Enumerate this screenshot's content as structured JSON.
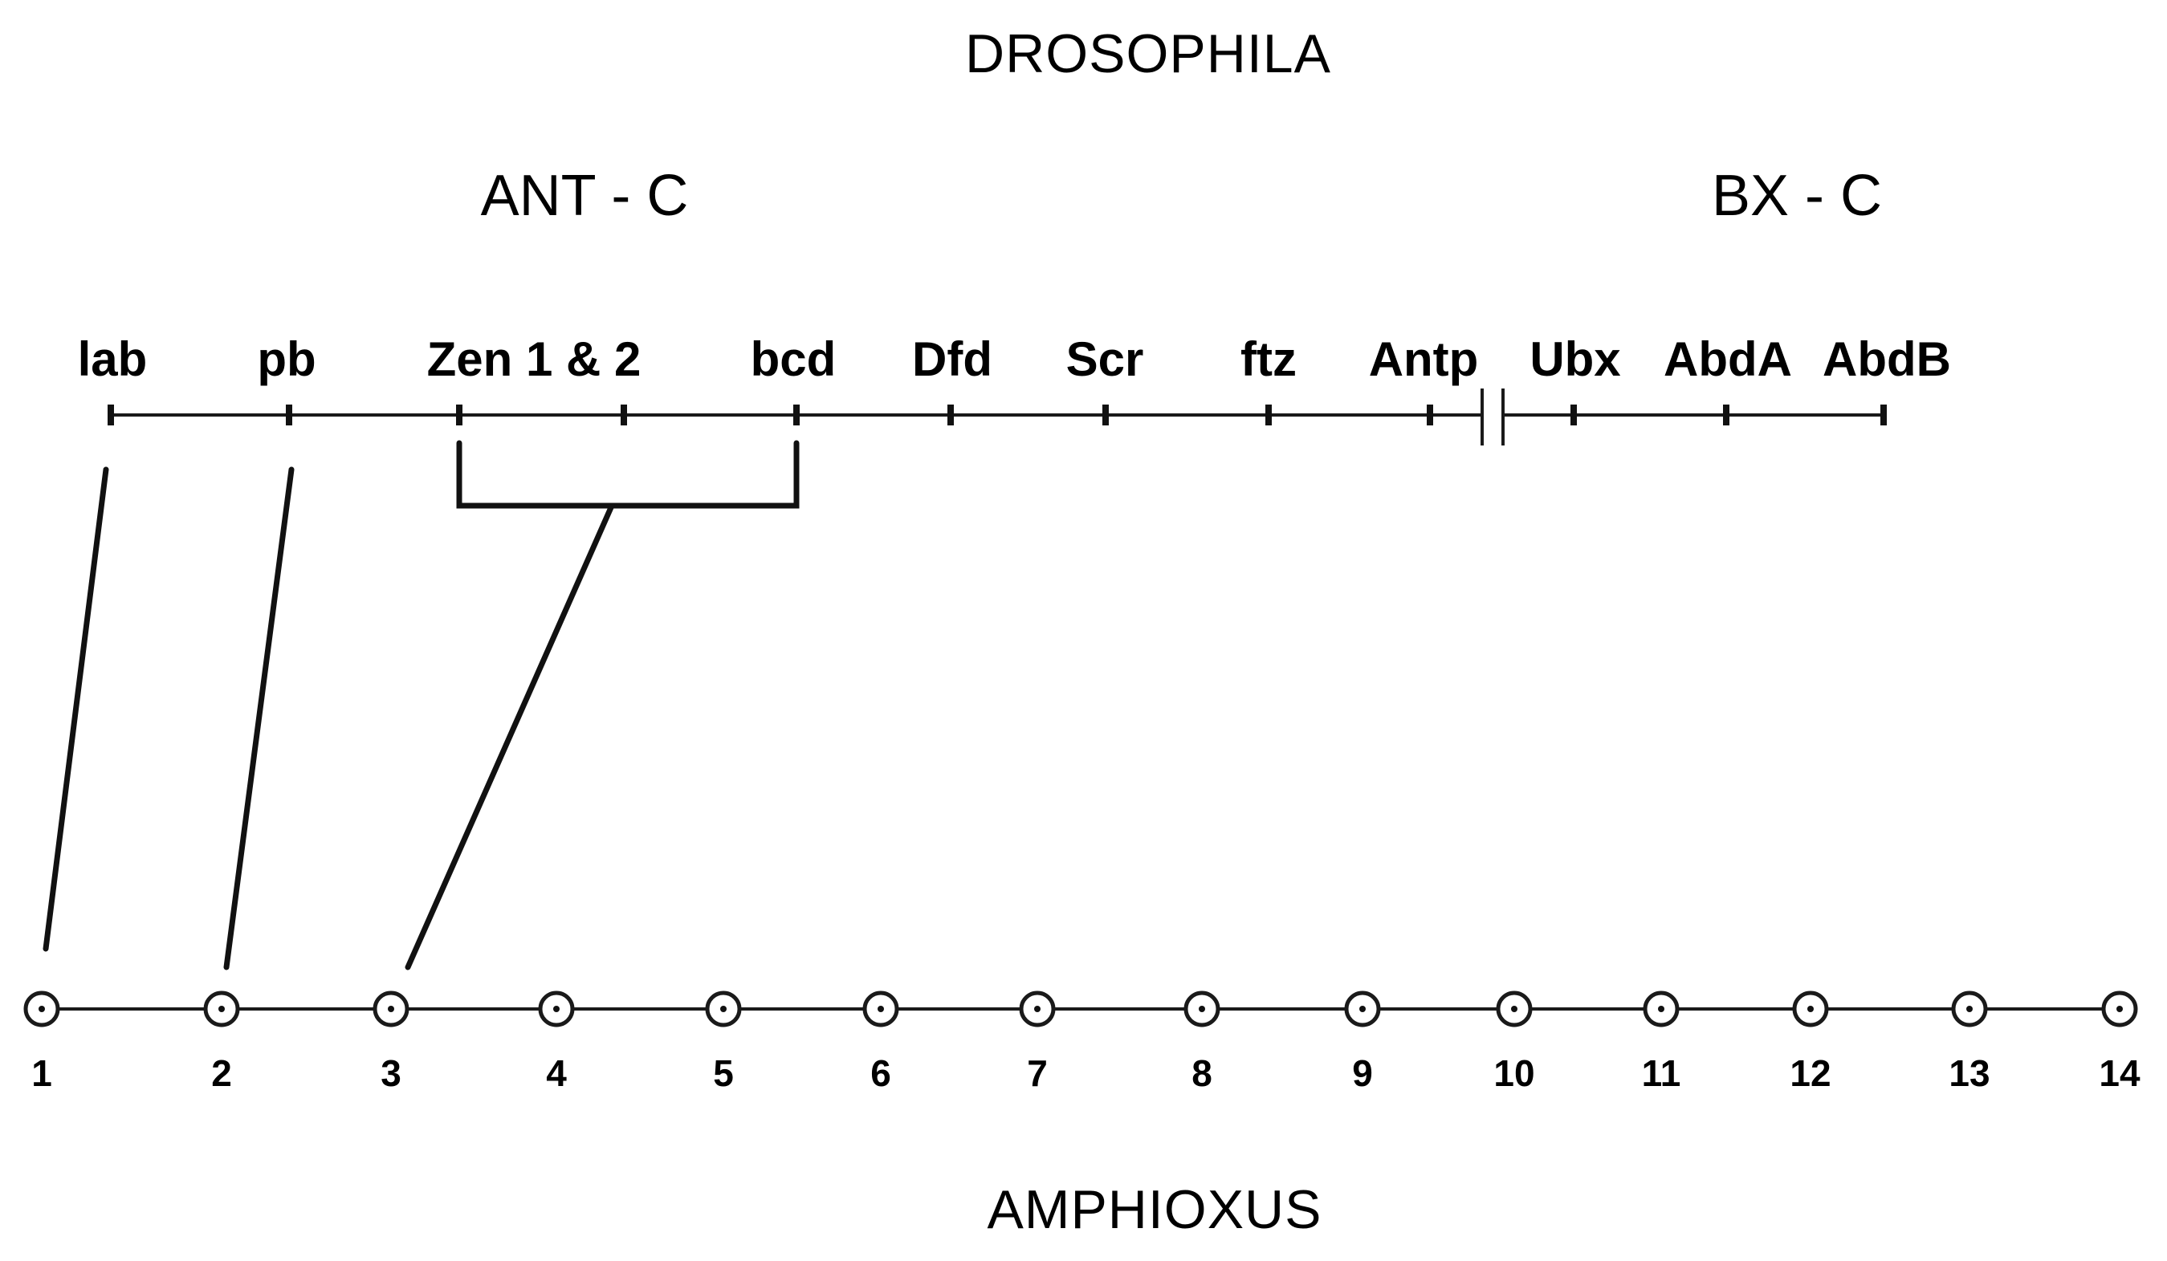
{
  "top_title": "DROSOPHILA",
  "bottom_title": "AMPHIOXUS",
  "complexes": {
    "ant_c": "ANT - C",
    "bx_c": "BX - C"
  },
  "drosophila_genes": [
    "lab",
    "pb",
    "Zen 1 & 2",
    "bcd",
    "Dfd",
    "Scr",
    "ftz",
    "Antp",
    "Ubx",
    "AbdA",
    "AbdB"
  ],
  "amphioxus_genes": [
    "1",
    "2",
    "3",
    "4",
    "5",
    "6",
    "7",
    "8",
    "9",
    "10",
    "11",
    "12",
    "13",
    "14"
  ],
  "links": [
    {
      "from": "lab",
      "to": "1"
    },
    {
      "from": "pb",
      "to": "2"
    },
    {
      "from": "Zen 1 & 2 / bcd",
      "to": "3"
    }
  ]
}
